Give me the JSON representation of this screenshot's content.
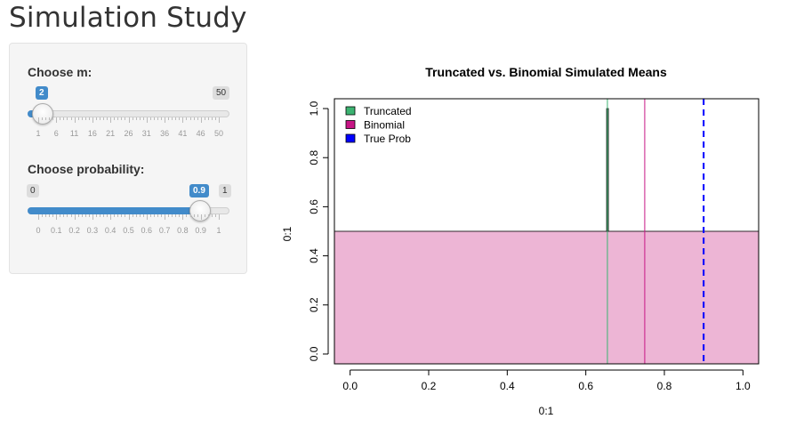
{
  "page": {
    "title": "Simulation Study"
  },
  "controls": {
    "m": {
      "label": "Choose m:",
      "min": 1,
      "max": 50,
      "value": 2,
      "value_label": "2",
      "max_label": "50",
      "tick_labels": [
        "1",
        "6",
        "11",
        "16",
        "21",
        "26",
        "31",
        "36",
        "41",
        "46",
        "50"
      ]
    },
    "prob": {
      "label": "Choose probability:",
      "min": 0,
      "max": 1,
      "value": 0.9,
      "value_label": "0.9",
      "min_label": "0",
      "max_label": "1",
      "tick_labels": [
        "0",
        "0.1",
        "0.2",
        "0.3",
        "0.4",
        "0.5",
        "0.6",
        "0.7",
        "0.8",
        "0.9",
        "1"
      ]
    }
  },
  "chart_data": {
    "type": "bar",
    "title": "Truncated vs. Binomial Simulated Means",
    "xlabel": "0:1",
    "ylabel": "0:1",
    "xlim": [
      -0.04,
      1.04
    ],
    "ylim": [
      -0.04,
      1.04
    ],
    "xticks": [
      "0.0",
      "0.2",
      "0.4",
      "0.6",
      "0.8",
      "1.0"
    ],
    "yticks": [
      "0.0",
      "0.2",
      "0.4",
      "0.6",
      "0.8",
      "1.0"
    ],
    "series": [
      {
        "name": "Truncated",
        "color": "#3cb371",
        "values": [
          {
            "x0": 0.653,
            "x1": 0.657,
            "y": 1.0
          }
        ]
      },
      {
        "name": "Binomial",
        "color": "#c71585",
        "values": [
          {
            "x0": -0.04,
            "x1": 1.04,
            "y": 0.5
          }
        ]
      },
      {
        "name": "True Prob",
        "color": "#0000ff",
        "values": [
          {
            "x": 0.9
          }
        ]
      }
    ],
    "reference_lines": [
      {
        "x": 0.655,
        "color": "#3cb371"
      },
      {
        "x": 0.75,
        "color": "#c71585"
      },
      {
        "x": 0.9,
        "color": "#0000ff",
        "style": "dashed"
      }
    ],
    "legend_position": "top-left"
  }
}
